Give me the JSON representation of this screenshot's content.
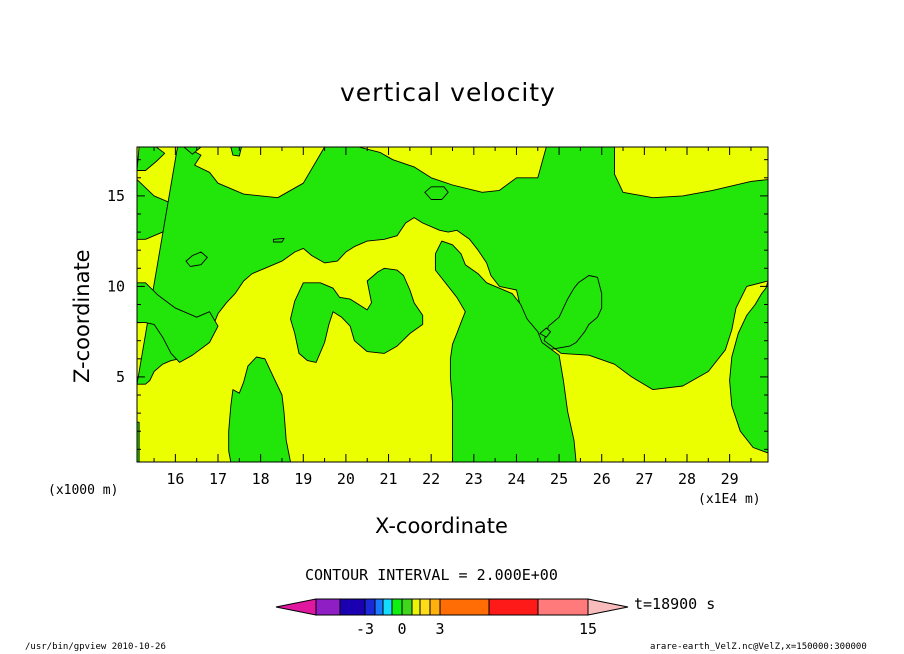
{
  "chart_data": {
    "type": "heatmap",
    "title": "vertical velocity",
    "xlabel": "X-coordinate",
    "ylabel": "Z-coordinate",
    "x_scale_note": "(x1E4 m)",
    "y_scale_note": "(x1000 m)",
    "xlim": [
      15.1,
      29.9
    ],
    "ylim": [
      0.3,
      17.7
    ],
    "xticks": [
      16,
      17,
      18,
      19,
      20,
      21,
      22,
      23,
      24,
      25,
      26,
      27,
      28,
      29
    ],
    "yticks": [
      5,
      10,
      15
    ],
    "contour_interval": "CONTOUR INTERVAL = 2.000E+00",
    "time": "t=18900 s",
    "colorbar": {
      "colors": [
        "#e0189f",
        "#8f1fc4",
        "#1a00b0",
        "#1a28d8",
        "#1878ff",
        "#13dcff",
        "#0ff010",
        "#3fd61c",
        "#ecf408",
        "#ffdc1a",
        "#ffb00c",
        "#ff6d04",
        "#ff1a1a",
        "#ff7a7a",
        "#f8bcbc"
      ],
      "labels": [
        "-3",
        "0",
        "3",
        "15"
      ]
    },
    "fills": {
      "positive": "#ecff00",
      "negative": "#22e60a"
    },
    "regions": [
      {
        "sign": "negative",
        "pts": [
          [
            15.15,
            17.7
          ],
          [
            15.55,
            17.7
          ],
          [
            15.75,
            17.35
          ],
          [
            15.55,
            16.9
          ],
          [
            15.3,
            16.4
          ],
          [
            15.1,
            16.4
          ]
        ]
      },
      {
        "sign": "negative",
        "pts": [
          [
            15.1,
            15.9
          ],
          [
            15.5,
            15.0
          ],
          [
            16.5,
            14.0
          ],
          [
            17.7,
            14.1
          ],
          [
            18.8,
            14.2
          ],
          [
            19.4,
            13.4
          ],
          [
            19.7,
            12.8
          ],
          [
            19.3,
            12.3
          ],
          [
            18.9,
            13.0
          ],
          [
            18.2,
            13.5
          ],
          [
            17.2,
            13.8
          ],
          [
            16.3,
            13.5
          ],
          [
            15.7,
            13.0
          ],
          [
            15.3,
            12.6
          ],
          [
            15.1,
            12.6
          ]
        ]
      },
      {
        "sign": "negative",
        "pts": [
          [
            16.05,
            17.7
          ],
          [
            16.25,
            17.7
          ],
          [
            16.6,
            17.25
          ],
          [
            16.45,
            16.7
          ],
          [
            16.8,
            16.3
          ],
          [
            17.0,
            15.7
          ],
          [
            17.6,
            15.1
          ],
          [
            18.4,
            14.9
          ],
          [
            19.0,
            15.7
          ],
          [
            19.5,
            17.7
          ],
          [
            20.3,
            17.7
          ],
          [
            20.8,
            17.4
          ],
          [
            21.1,
            17.0
          ],
          [
            21.6,
            16.6
          ],
          [
            22.0,
            16.0
          ],
          [
            22.5,
            15.6
          ],
          [
            23.2,
            15.2
          ],
          [
            23.6,
            15.3
          ],
          [
            24.0,
            16.0
          ],
          [
            24.5,
            16.0
          ],
          [
            24.7,
            17.7
          ],
          [
            25.5,
            17.7
          ],
          [
            26.3,
            17.7
          ],
          [
            26.3,
            16.2
          ],
          [
            26.5,
            15.2
          ],
          [
            27.2,
            14.9
          ],
          [
            27.9,
            15.0
          ],
          [
            28.6,
            15.3
          ],
          [
            29.5,
            15.8
          ],
          [
            29.9,
            15.9
          ],
          [
            29.9,
            10.3
          ],
          [
            29.4,
            10.0
          ],
          [
            29.15,
            8.8
          ],
          [
            29.05,
            7.6
          ],
          [
            28.9,
            6.5
          ],
          [
            28.5,
            5.3
          ],
          [
            27.9,
            4.5
          ],
          [
            27.2,
            4.3
          ],
          [
            26.7,
            5.0
          ],
          [
            26.3,
            5.7
          ],
          [
            25.7,
            6.2
          ],
          [
            25.05,
            6.3
          ],
          [
            24.65,
            7.0
          ],
          [
            24.75,
            7.8
          ],
          [
            25.0,
            8.3
          ],
          [
            25.2,
            9.3
          ],
          [
            25.35,
            9.9
          ],
          [
            25.45,
            10.2
          ],
          [
            25.7,
            10.6
          ],
          [
            25.9,
            10.5
          ],
          [
            26.0,
            9.6
          ],
          [
            26.0,
            8.8
          ],
          [
            25.9,
            8.3
          ],
          [
            25.7,
            7.9
          ],
          [
            25.6,
            7.5
          ],
          [
            25.5,
            7.2
          ],
          [
            25.4,
            6.9
          ],
          [
            25.25,
            6.7
          ],
          [
            25.0,
            6.6
          ],
          [
            24.75,
            6.5
          ],
          [
            24.5,
            6.6
          ],
          [
            24.3,
            7.2
          ],
          [
            24.2,
            8.0
          ],
          [
            24.1,
            8.8
          ],
          [
            24.0,
            9.8
          ],
          [
            23.6,
            10.0
          ],
          [
            23.4,
            10.6
          ],
          [
            23.3,
            11.3
          ],
          [
            23.1,
            12.0
          ],
          [
            22.9,
            12.6
          ],
          [
            22.6,
            13.1
          ],
          [
            22.4,
            13.0
          ],
          [
            22.2,
            13.1
          ],
          [
            21.8,
            13.5
          ],
          [
            21.6,
            13.8
          ],
          [
            21.4,
            13.5
          ],
          [
            21.2,
            12.8
          ],
          [
            20.9,
            12.6
          ],
          [
            20.5,
            12.5
          ],
          [
            20.2,
            12.2
          ],
          [
            20.0,
            11.9
          ],
          [
            19.8,
            11.4
          ],
          [
            19.5,
            11.3
          ],
          [
            19.2,
            11.7
          ],
          [
            19.0,
            12.1
          ],
          [
            18.8,
            11.9
          ],
          [
            18.5,
            11.4
          ],
          [
            18.1,
            11.0
          ],
          [
            17.8,
            10.7
          ],
          [
            17.6,
            10.3
          ],
          [
            17.4,
            9.6
          ],
          [
            17.2,
            9.1
          ],
          [
            17.0,
            8.5
          ],
          [
            16.9,
            7.9
          ],
          [
            16.7,
            7.0
          ],
          [
            16.3,
            6.4
          ],
          [
            16.1,
            6.0
          ],
          [
            15.9,
            5.9
          ],
          [
            15.7,
            5.7
          ],
          [
            15.5,
            5.3
          ],
          [
            15.4,
            4.8
          ],
          [
            15.3,
            4.6
          ],
          [
            15.1,
            4.6
          ]
        ]
      },
      {
        "sign": "negative",
        "pts": [
          [
            15.1,
            10.2
          ],
          [
            15.3,
            10.2
          ],
          [
            15.6,
            9.5
          ],
          [
            16.0,
            8.8
          ],
          [
            16.5,
            8.3
          ],
          [
            16.8,
            8.6
          ],
          [
            17.0,
            7.8
          ],
          [
            16.8,
            6.9
          ],
          [
            16.4,
            6.2
          ],
          [
            16.1,
            5.8
          ],
          [
            15.9,
            6.3
          ],
          [
            15.7,
            7.2
          ],
          [
            15.5,
            7.9
          ],
          [
            15.3,
            8.0
          ],
          [
            15.1,
            8.0
          ]
        ]
      },
      {
        "sign": "negative",
        "pts": [
          [
            16.4,
            11.7
          ],
          [
            16.6,
            11.9
          ],
          [
            16.75,
            11.6
          ],
          [
            16.6,
            11.2
          ],
          [
            16.35,
            11.1
          ],
          [
            16.25,
            11.4
          ]
        ]
      },
      {
        "sign": "negative",
        "pts": [
          [
            16.2,
            17.7
          ],
          [
            16.6,
            17.7
          ],
          [
            16.4,
            17.3
          ]
        ]
      },
      {
        "sign": "negative",
        "pts": [
          [
            17.3,
            17.7
          ],
          [
            17.55,
            17.7
          ],
          [
            17.5,
            17.2
          ],
          [
            17.35,
            17.25
          ]
        ]
      },
      {
        "sign": "negative",
        "pts": [
          [
            18.3,
            12.6
          ],
          [
            18.55,
            12.65
          ],
          [
            18.5,
            12.45
          ],
          [
            18.3,
            12.45
          ]
        ]
      },
      {
        "sign": "negative",
        "pts": [
          [
            17.3,
            0.3
          ],
          [
            18.7,
            0.3
          ],
          [
            18.6,
            1.5
          ],
          [
            18.55,
            3.0
          ],
          [
            18.5,
            4.0
          ],
          [
            18.3,
            5.0
          ],
          [
            18.1,
            6.0
          ],
          [
            17.9,
            6.1
          ],
          [
            17.7,
            5.6
          ],
          [
            17.6,
            4.7
          ],
          [
            17.5,
            4.1
          ],
          [
            17.35,
            4.3
          ],
          [
            17.3,
            3.4
          ],
          [
            17.25,
            2.0
          ],
          [
            17.25,
            0.9
          ]
        ]
      },
      {
        "sign": "negative",
        "pts": [
          [
            18.8,
            9.2
          ],
          [
            19.0,
            10.2
          ],
          [
            19.4,
            10.2
          ],
          [
            19.7,
            9.9
          ],
          [
            19.85,
            9.4
          ],
          [
            20.1,
            9.3
          ],
          [
            20.5,
            8.7
          ],
          [
            20.6,
            9.1
          ],
          [
            20.5,
            10.3
          ],
          [
            20.75,
            10.8
          ],
          [
            20.9,
            11.0
          ],
          [
            21.2,
            10.9
          ],
          [
            21.35,
            10.6
          ],
          [
            21.5,
            9.8
          ],
          [
            21.6,
            9.1
          ],
          [
            21.8,
            8.4
          ],
          [
            21.8,
            7.9
          ],
          [
            21.5,
            7.4
          ],
          [
            21.2,
            6.7
          ],
          [
            20.9,
            6.3
          ],
          [
            20.5,
            6.4
          ],
          [
            20.2,
            7.0
          ],
          [
            20.1,
            7.8
          ],
          [
            19.9,
            8.3
          ],
          [
            19.7,
            8.6
          ],
          [
            19.6,
            7.9
          ],
          [
            19.5,
            6.9
          ],
          [
            19.3,
            5.8
          ],
          [
            19.1,
            5.9
          ],
          [
            18.9,
            6.3
          ],
          [
            18.8,
            7.4
          ],
          [
            18.7,
            8.2
          ]
        ]
      },
      {
        "sign": "negative",
        "pts": [
          [
            22.5,
            0.3
          ],
          [
            25.4,
            0.3
          ],
          [
            25.35,
            1.5
          ],
          [
            25.2,
            3.1
          ],
          [
            25.1,
            4.8
          ],
          [
            25.0,
            6.2
          ],
          [
            24.6,
            6.9
          ],
          [
            24.5,
            7.5
          ],
          [
            24.25,
            8.2
          ],
          [
            24.1,
            9.0
          ],
          [
            23.9,
            9.6
          ],
          [
            23.6,
            9.9
          ],
          [
            23.3,
            10.2
          ],
          [
            23.1,
            10.7
          ],
          [
            22.8,
            11.2
          ],
          [
            22.7,
            11.8
          ],
          [
            22.5,
            12.3
          ],
          [
            22.25,
            12.5
          ],
          [
            22.1,
            11.8
          ],
          [
            22.1,
            10.9
          ],
          [
            22.3,
            10.3
          ],
          [
            22.6,
            9.4
          ],
          [
            22.8,
            8.6
          ],
          [
            22.7,
            8.0
          ],
          [
            22.6,
            7.4
          ],
          [
            22.5,
            6.8
          ],
          [
            22.45,
            6.0
          ],
          [
            22.45,
            5.0
          ],
          [
            22.5,
            3.6
          ],
          [
            22.5,
            2.0
          ]
        ]
      },
      {
        "sign": "negative",
        "pts": [
          [
            21.85,
            15.2
          ],
          [
            22.0,
            15.5
          ],
          [
            22.3,
            15.5
          ],
          [
            22.4,
            15.2
          ],
          [
            22.25,
            14.8
          ],
          [
            22.0,
            14.8
          ]
        ]
      },
      {
        "sign": "negative",
        "pts": [
          [
            29.9,
            10.3
          ],
          [
            29.9,
            0.8
          ],
          [
            29.55,
            1.1
          ],
          [
            29.25,
            2.0
          ],
          [
            29.05,
            3.4
          ],
          [
            29.0,
            4.8
          ],
          [
            29.05,
            6.1
          ],
          [
            29.2,
            7.4
          ],
          [
            29.4,
            8.4
          ],
          [
            29.6,
            9.0
          ],
          [
            29.75,
            9.6
          ],
          [
            29.85,
            9.9
          ]
        ]
      },
      {
        "sign": "negative",
        "pts": [
          [
            15.1,
            0.3
          ],
          [
            15.15,
            0.3
          ],
          [
            15.15,
            2.5
          ],
          [
            15.1,
            2.5
          ]
        ]
      },
      {
        "sign": "negative",
        "pts": [
          [
            24.55,
            7.4
          ],
          [
            24.7,
            7.7
          ],
          [
            24.8,
            7.5
          ],
          [
            24.7,
            7.2
          ]
        ]
      }
    ]
  },
  "footer": {
    "left": "/usr/bin/gpview 2010-10-26",
    "right": "arare-earth_VelZ.nc@VelZ,x=150000:300000"
  }
}
